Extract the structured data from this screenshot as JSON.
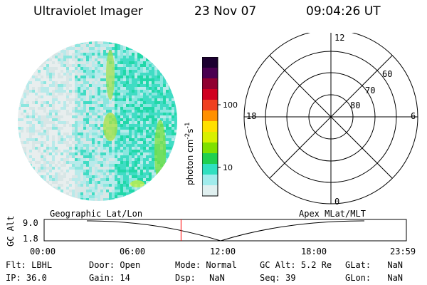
{
  "header": {
    "instrument": "Ultraviolet Imager",
    "date": "23 Nov 07",
    "time": "09:04:26 UT"
  },
  "colorbar": {
    "unit_prefix": "photon cm",
    "unit_exp1": "-2",
    "unit_mid": "s",
    "unit_exp2": "-1",
    "ticks": [
      "100",
      "10"
    ],
    "colors": [
      "#1c0030",
      "#4a0050",
      "#900030",
      "#d00020",
      "#f04020",
      "#ff9000",
      "#ffe000",
      "#d8f000",
      "#80e000",
      "#20d050",
      "#30e0c0",
      "#a0ecec",
      "#e0f0f0"
    ]
  },
  "polar": {
    "mlt_labels": {
      "top": "12",
      "left": "18",
      "right": "6",
      "bottom": "0"
    },
    "lat_labels": [
      "60",
      "70",
      "80"
    ]
  },
  "timeline": {
    "left_label": "Geographic Lat/Lon",
    "right_label": "Apex MLat/MLT",
    "axis_title": "GC Alt",
    "y_ticks": [
      "9.0",
      "1.8"
    ],
    "x_ticks": [
      "00:00",
      "06:00",
      "12:00",
      "18:00",
      "23:59"
    ],
    "marker_time": "09:04:26",
    "marker_color": "#ff0000"
  },
  "status": {
    "flt_label": "Flt:",
    "flt_value": "LBHL",
    "ip_label": "IP:",
    "ip_value": "36.0",
    "door_label": "Door:",
    "door_value": "Open",
    "gain_label": "Gain:",
    "gain_value": "14",
    "mode_label": "Mode:",
    "mode_value": "Normal",
    "dsp_label": "Dsp:",
    "dsp_value": "NaN",
    "gcalt_label": "GC Alt:",
    "gcalt_value": "5.2 Re",
    "seq_label": "Seq:",
    "seq_value": "39",
    "glat_label": "GLat:",
    "glat_value": "NaN",
    "glon_label": "GLon:",
    "glon_value": "NaN"
  }
}
